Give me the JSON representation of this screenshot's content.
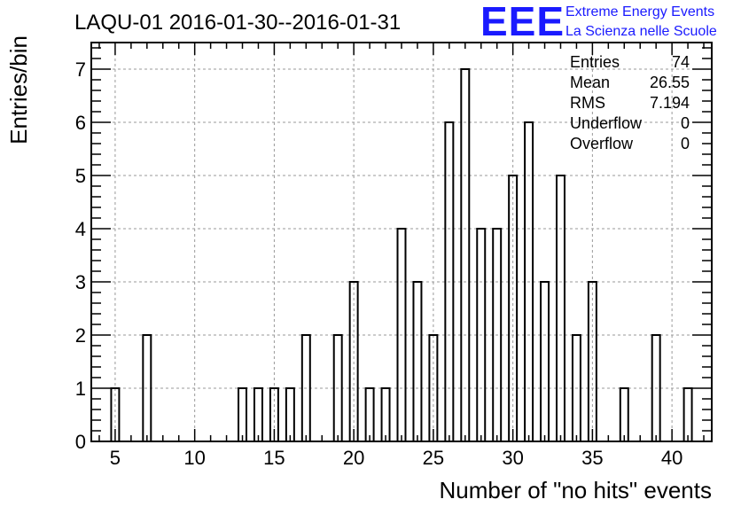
{
  "chart_data": {
    "type": "bar",
    "title": "LAQU-01 2016-01-30--2016-01-31",
    "xlabel": "Number of \"no hits\" events",
    "ylabel": "Entries/bin",
    "xlim": [
      3.5,
      42.5
    ],
    "ylim": [
      0,
      7.5
    ],
    "xticks": [
      5,
      10,
      15,
      20,
      25,
      30,
      35,
      40
    ],
    "yticks": [
      0,
      1,
      2,
      3,
      4,
      5,
      6,
      7
    ],
    "bin_width": 0.5,
    "grid": true,
    "bins": [
      {
        "x": 5,
        "y": 1
      },
      {
        "x": 7,
        "y": 2
      },
      {
        "x": 13,
        "y": 1
      },
      {
        "x": 14,
        "y": 1
      },
      {
        "x": 15,
        "y": 1
      },
      {
        "x": 16,
        "y": 1
      },
      {
        "x": 17,
        "y": 2
      },
      {
        "x": 19,
        "y": 2
      },
      {
        "x": 20,
        "y": 3
      },
      {
        "x": 21,
        "y": 1
      },
      {
        "x": 22,
        "y": 1
      },
      {
        "x": 23,
        "y": 4
      },
      {
        "x": 24,
        "y": 3
      },
      {
        "x": 25,
        "y": 2
      },
      {
        "x": 26,
        "y": 6
      },
      {
        "x": 27,
        "y": 7
      },
      {
        "x": 28,
        "y": 4
      },
      {
        "x": 29,
        "y": 4
      },
      {
        "x": 30,
        "y": 5
      },
      {
        "x": 31,
        "y": 6
      },
      {
        "x": 32,
        "y": 3
      },
      {
        "x": 33,
        "y": 5
      },
      {
        "x": 34,
        "y": 2
      },
      {
        "x": 35,
        "y": 3
      },
      {
        "x": 37,
        "y": 1
      },
      {
        "x": 39,
        "y": 2
      },
      {
        "x": 41,
        "y": 1
      }
    ]
  },
  "stats": [
    {
      "label": "Entries",
      "value": "74"
    },
    {
      "label": "Mean",
      "value": "26.55"
    },
    {
      "label": "RMS",
      "value": "7.194"
    },
    {
      "label": "Underflow",
      "value": "0"
    },
    {
      "label": "Overflow",
      "value": "0"
    }
  ],
  "logo": {
    "text": "EEE",
    "line1": "Extreme Energy Events",
    "line2": "La Scienza nelle Scuole",
    "color": "#1a1aff"
  }
}
